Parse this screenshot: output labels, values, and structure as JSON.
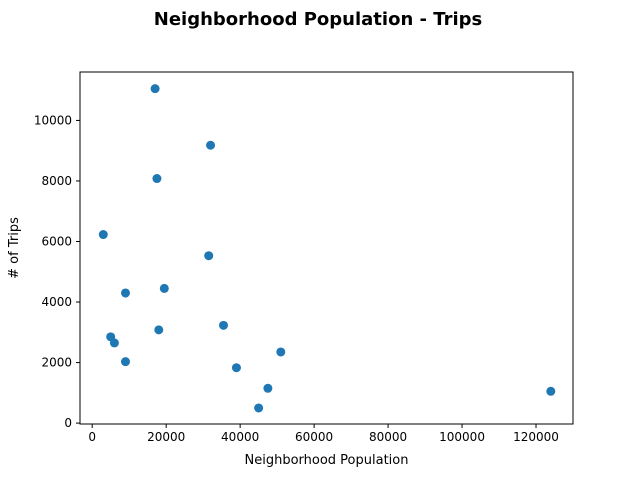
{
  "chart_data": {
    "type": "scatter",
    "title": "Neighborhood Population - Trips",
    "xlabel": "Neighborhood Population",
    "ylabel": "# of Trips",
    "xlim": [
      -3300,
      130000
    ],
    "ylim": [
      -30,
      11600
    ],
    "xticks": [
      0,
      20000,
      40000,
      60000,
      80000,
      100000,
      120000
    ],
    "xtick_labels": [
      "0",
      "20000",
      "40000",
      "60000",
      "80000",
      "100000",
      "120000"
    ],
    "yticks": [
      0,
      2000,
      4000,
      6000,
      8000,
      10000
    ],
    "ytick_labels": [
      "0",
      "2000",
      "4000",
      "6000",
      "8000",
      "10000"
    ],
    "grid": false,
    "legend": "none",
    "marker_color": "#1f77b4",
    "points": [
      {
        "x": 17000,
        "y": 11050
      },
      {
        "x": 32000,
        "y": 9180
      },
      {
        "x": 17500,
        "y": 8080
      },
      {
        "x": 3000,
        "y": 6230
      },
      {
        "x": 31500,
        "y": 5530
      },
      {
        "x": 19500,
        "y": 4450
      },
      {
        "x": 9000,
        "y": 4300
      },
      {
        "x": 35500,
        "y": 3230
      },
      {
        "x": 18000,
        "y": 3080
      },
      {
        "x": 5000,
        "y": 2850
      },
      {
        "x": 6000,
        "y": 2650
      },
      {
        "x": 51000,
        "y": 2350
      },
      {
        "x": 9000,
        "y": 2030
      },
      {
        "x": 39000,
        "y": 1830
      },
      {
        "x": 47500,
        "y": 1150
      },
      {
        "x": 124000,
        "y": 1050
      },
      {
        "x": 45000,
        "y": 500
      }
    ]
  }
}
